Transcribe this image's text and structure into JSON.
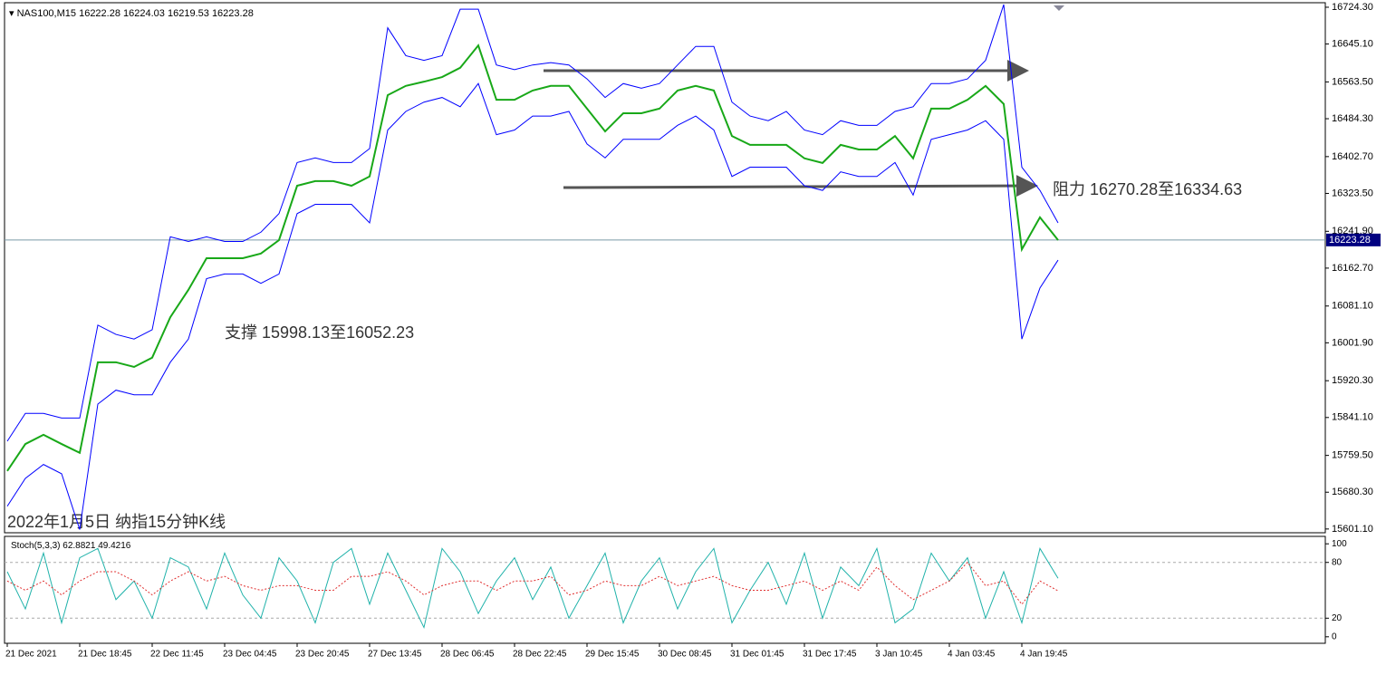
{
  "chart_data": [
    {
      "type": "line",
      "symbol": "NAS100,M15",
      "ohlc": [
        16222.28,
        16224.03,
        16219.53,
        16223.28
      ],
      "title": "2022年1月5日 纳指15分钟K线",
      "annotations": [
        "阻力 16270.28至16334.63",
        "支撑 15998.13至16052.23"
      ],
      "current_price": 16223.28,
      "categories": [
        "21 Dec 2021",
        null,
        null,
        null,
        "21 Dec 18:45",
        null,
        null,
        null,
        "22 Dec 11:45",
        null,
        null,
        null,
        "23 Dec 04:45",
        null,
        null,
        null,
        "23 Dec 20:45",
        null,
        null,
        null,
        "27 Dec 13:45",
        null,
        null,
        null,
        "28 Dec 06:45",
        null,
        null,
        null,
        "28 Dec 22:45",
        null,
        null,
        null,
        "29 Dec 15:45",
        null,
        null,
        null,
        "30 Dec 08:45",
        null,
        null,
        null,
        "31 Dec 01:45",
        null,
        null,
        null,
        "31 Dec 17:45",
        null,
        null,
        null,
        "3 Jan 10:45",
        null,
        null,
        null,
        "4 Jan 03:45",
        null,
        null,
        null,
        "4 Jan 19:45",
        null,
        null
      ],
      "series": [
        {
          "name": "Close",
          "color": "#18a818",
          "values": [
            15726,
            15784,
            15804,
            15784,
            15765,
            15960,
            15960,
            15950,
            15970,
            16057,
            16116,
            16184,
            16184,
            16184,
            16194,
            16223,
            16340,
            16350,
            16350,
            16340,
            16360,
            16535,
            16555,
            16564,
            16574,
            16594,
            16642,
            16525,
            16525,
            16545,
            16555,
            16555,
            16506,
            16457,
            16496,
            16496,
            16506,
            16545,
            16555,
            16545,
            16447,
            16428,
            16428,
            16428,
            16399,
            16389,
            16428,
            16418,
            16418,
            16447,
            16399,
            16506,
            16506,
            16525,
            16555,
            16516,
            16203,
            16272,
            16223
          ]
        },
        {
          "name": "Upper",
          "color": "#0000ff",
          "values": [
            15790,
            15850,
            15850,
            15840,
            15840,
            16040,
            16020,
            16010,
            16030,
            16230,
            16220,
            16230,
            16220,
            16220,
            16240,
            16280,
            16390,
            16400,
            16390,
            16390,
            16420,
            16680,
            16620,
            16610,
            16620,
            16720,
            16720,
            16600,
            16590,
            16600,
            16605,
            16600,
            16570,
            16530,
            16560,
            16550,
            16560,
            16600,
            16640,
            16640,
            16520,
            16490,
            16480,
            16500,
            16460,
            16450,
            16480,
            16470,
            16470,
            16500,
            16510,
            16560,
            16560,
            16570,
            16610,
            16730,
            16380,
            16330,
            16260
          ]
        },
        {
          "name": "Lower",
          "color": "#0000ff",
          "values": [
            15650,
            15710,
            15740,
            15720,
            15600,
            15870,
            15900,
            15890,
            15890,
            15960,
            16010,
            16140,
            16150,
            16150,
            16130,
            16150,
            16280,
            16300,
            16300,
            16300,
            16260,
            16460,
            16500,
            16520,
            16530,
            16510,
            16560,
            16450,
            16460,
            16490,
            16490,
            16500,
            16430,
            16400,
            16440,
            16440,
            16440,
            16470,
            16490,
            16460,
            16360,
            16380,
            16380,
            16380,
            16340,
            16330,
            16370,
            16360,
            16360,
            16390,
            16320,
            16440,
            16450,
            16460,
            16480,
            16440,
            16010,
            16120,
            16180
          ]
        }
      ],
      "ylim": [
        15593,
        16734
      ],
      "yticks": [
        {
          "value": 16724.3,
          "label": "16724.30"
        },
        {
          "value": 16645.1,
          "label": "16645.10"
        },
        {
          "value": 16563.5,
          "label": "16563.50"
        },
        {
          "value": 16484.3,
          "label": "16484.30"
        },
        {
          "value": 16402.7,
          "label": "16402.70"
        },
        {
          "value": 16323.5,
          "label": "16323.50"
        },
        {
          "value": 16241.9,
          "label": "16241.90"
        },
        {
          "value": 16162.7,
          "label": "16162.70"
        },
        {
          "value": 16081.1,
          "label": "16081.10"
        },
        {
          "value": 16001.9,
          "label": "16001.90"
        },
        {
          "value": 15920.3,
          "label": "15920.30"
        },
        {
          "value": 15841.1,
          "label": "15841.10"
        },
        {
          "value": 15759.5,
          "label": "15759.50"
        },
        {
          "value": 15680.3,
          "label": "15680.30"
        },
        {
          "value": 15601.1,
          "label": "15601.10"
        }
      ]
    },
    {
      "type": "line",
      "name": "Stoch(5,3,3)",
      "series": [
        {
          "name": "Main",
          "color": "#20b2aa",
          "values": [
            70,
            30,
            90,
            15,
            85,
            95,
            40,
            60,
            20,
            85,
            75,
            30,
            90,
            45,
            20,
            85,
            60,
            15,
            80,
            95,
            35,
            90,
            50,
            10,
            95,
            70,
            25,
            60,
            85,
            40,
            75,
            20,
            55,
            90,
            15,
            60,
            85,
            30,
            70,
            95,
            15,
            50,
            80,
            35,
            90,
            20,
            75,
            55,
            95,
            15,
            30,
            90,
            60,
            85,
            20,
            70,
            15,
            95,
            62.8821
          ]
        },
        {
          "name": "Signal",
          "color": "#e03030",
          "dashed": true,
          "values": [
            60,
            50,
            60,
            45,
            60,
            70,
            70,
            60,
            45,
            60,
            70,
            60,
            65,
            55,
            50,
            55,
            55,
            50,
            50,
            65,
            65,
            70,
            60,
            45,
            55,
            60,
            60,
            50,
            60,
            60,
            65,
            45,
            50,
            60,
            55,
            55,
            65,
            55,
            60,
            65,
            55,
            50,
            50,
            55,
            60,
            50,
            60,
            50,
            75,
            55,
            40,
            50,
            60,
            80,
            55,
            60,
            35,
            60,
            49.4216
          ]
        }
      ],
      "ylim": [
        -7,
        108
      ],
      "yticks": [
        0,
        20,
        80,
        100
      ],
      "levels": [
        20,
        80
      ]
    }
  ]
}
